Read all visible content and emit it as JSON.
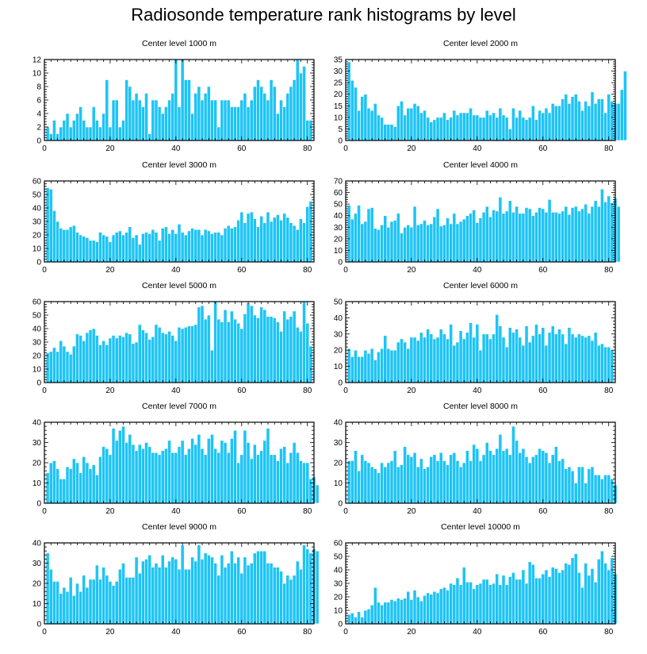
{
  "page": {
    "title": "Radiosonde temperature rank histograms by level"
  },
  "style": {
    "bar_color": "#1ec4f5",
    "bar_stroke": "#ffffff",
    "axis_color": "#000000"
  },
  "chart_data": [
    {
      "type": "bar",
      "title": "Center level 1000 m",
      "xlim": [
        0,
        82
      ],
      "ylim": [
        0,
        12
      ],
      "xticks": [
        0,
        20,
        40,
        60,
        80
      ],
      "yticks": [
        0,
        2,
        4,
        6,
        8,
        10,
        12
      ],
      "x_start": 1,
      "values": [
        2,
        1,
        3,
        1,
        2,
        3,
        4,
        2,
        3,
        4,
        5,
        3,
        2,
        2,
        5,
        3,
        2,
        4,
        9,
        2,
        6,
        6,
        2,
        3,
        9,
        8,
        6,
        7,
        6,
        5,
        7,
        1,
        6,
        6,
        5,
        4,
        5,
        6,
        7,
        12,
        5,
        12,
        9,
        9,
        4,
        7,
        8,
        6,
        7,
        8,
        6,
        6,
        2,
        6,
        6,
        6,
        5,
        5,
        5,
        6,
        7,
        5,
        6,
        8,
        9,
        8,
        7,
        6,
        9,
        8,
        4,
        6,
        5,
        7,
        8,
        9,
        12,
        10,
        11,
        3,
        3
      ]
    },
    {
      "type": "bar",
      "title": "Center level 2000 m",
      "xlim": [
        0,
        82
      ],
      "ylim": [
        0,
        35
      ],
      "xticks": [
        0,
        20,
        40,
        60,
        80
      ],
      "yticks": [
        0,
        5,
        10,
        15,
        20,
        25,
        30,
        35
      ],
      "x_start": 1,
      "values": [
        34,
        26,
        23,
        13,
        19,
        20,
        14,
        13,
        16,
        11,
        10,
        7,
        7,
        7,
        6,
        15,
        17,
        11,
        14,
        14,
        16,
        15,
        12,
        13,
        10,
        8,
        9,
        10,
        10,
        12,
        9,
        10,
        13,
        11,
        12,
        12,
        12,
        14,
        11,
        11,
        10,
        10,
        13,
        11,
        12,
        10,
        14,
        11,
        10,
        5,
        14,
        10,
        13,
        10,
        9,
        10,
        15,
        9,
        13,
        12,
        14,
        12,
        16,
        15,
        15,
        18,
        20,
        16,
        19,
        20,
        17,
        13,
        17,
        15,
        21,
        16,
        18,
        18,
        12,
        20,
        17,
        16,
        16,
        22,
        30
      ]
    },
    {
      "type": "bar",
      "title": "Center level 3000 m",
      "xlim": [
        0,
        82
      ],
      "ylim": [
        0,
        60
      ],
      "xticks": [
        0,
        20,
        40,
        60,
        80
      ],
      "yticks": [
        0,
        10,
        20,
        30,
        40,
        50,
        60
      ],
      "x_start": 1,
      "values": [
        55,
        54,
        38,
        30,
        25,
        24,
        24,
        26,
        27,
        22,
        20,
        19,
        18,
        16,
        16,
        15,
        22,
        20,
        19,
        15,
        20,
        22,
        23,
        20,
        22,
        26,
        18,
        20,
        13,
        21,
        22,
        21,
        24,
        22,
        16,
        25,
        26,
        21,
        24,
        21,
        28,
        22,
        20,
        23,
        25,
        24,
        24,
        20,
        24,
        23,
        21,
        22,
        22,
        20,
        25,
        27,
        25,
        26,
        31,
        37,
        29,
        36,
        37,
        32,
        26,
        34,
        29,
        37,
        30,
        33,
        35,
        31,
        36,
        33,
        29,
        27,
        24,
        32,
        29,
        41,
        45
      ]
    },
    {
      "type": "bar",
      "title": "Center level 4000 m",
      "xlim": [
        0,
        82
      ],
      "ylim": [
        0,
        70
      ],
      "xticks": [
        0,
        20,
        40,
        60,
        80
      ],
      "yticks": [
        0,
        10,
        20,
        30,
        40,
        50,
        60,
        70
      ],
      "x_start": 1,
      "values": [
        49,
        37,
        42,
        49,
        33,
        35,
        46,
        47,
        29,
        28,
        32,
        40,
        30,
        35,
        36,
        42,
        25,
        30,
        32,
        30,
        48,
        32,
        33,
        36,
        32,
        33,
        39,
        46,
        31,
        32,
        38,
        33,
        42,
        33,
        35,
        37,
        40,
        42,
        45,
        34,
        38,
        43,
        48,
        39,
        45,
        44,
        56,
        42,
        44,
        53,
        43,
        48,
        42,
        42,
        47,
        46,
        40,
        43,
        47,
        46,
        43,
        54,
        43,
        43,
        42,
        44,
        48,
        41,
        47,
        48,
        44,
        46,
        50,
        42,
        48,
        53,
        48,
        63,
        52,
        57,
        51,
        55,
        48
      ]
    },
    {
      "type": "bar",
      "title": "Center level 5000 m",
      "xlim": [
        0,
        82
      ],
      "ylim": [
        0,
        60
      ],
      "xticks": [
        0,
        20,
        40,
        60,
        80
      ],
      "yticks": [
        0,
        10,
        20,
        30,
        40,
        50,
        60
      ],
      "x_start": 1,
      "values": [
        22,
        23,
        26,
        23,
        31,
        27,
        23,
        21,
        27,
        36,
        35,
        31,
        37,
        39,
        40,
        35,
        28,
        31,
        28,
        33,
        35,
        33,
        35,
        34,
        37,
        36,
        29,
        30,
        43,
        39,
        37,
        32,
        34,
        43,
        41,
        37,
        36,
        38,
        35,
        31,
        41,
        40,
        41,
        42,
        42,
        43,
        56,
        57,
        47,
        50,
        24,
        60,
        47,
        45,
        54,
        45,
        53,
        47,
        44,
        40,
        51,
        59,
        57,
        50,
        48,
        56,
        54,
        49,
        49,
        48,
        45,
        38,
        53,
        47,
        49,
        53,
        41,
        38,
        60,
        44,
        27
      ]
    },
    {
      "type": "bar",
      "title": "Center level 6000 m",
      "xlim": [
        0,
        82
      ],
      "ylim": [
        0,
        50
      ],
      "xticks": [
        0,
        20,
        40,
        60,
        80
      ],
      "yticks": [
        0,
        10,
        20,
        30,
        40,
        50
      ],
      "x_start": 1,
      "values": [
        21,
        16,
        20,
        16,
        16,
        20,
        18,
        21,
        14,
        19,
        21,
        29,
        21,
        20,
        20,
        25,
        27,
        25,
        21,
        28,
        28,
        26,
        31,
        28,
        33,
        30,
        27,
        28,
        33,
        30,
        27,
        36,
        23,
        25,
        32,
        27,
        31,
        37,
        28,
        36,
        20,
        30,
        30,
        27,
        30,
        42,
        35,
        28,
        22,
        34,
        31,
        33,
        28,
        23,
        35,
        25,
        29,
        36,
        30,
        34,
        23,
        31,
        35,
        30,
        33,
        30,
        24,
        34,
        30,
        28,
        30,
        29,
        28,
        29,
        26,
        31,
        23,
        24,
        22,
        22,
        20
      ]
    },
    {
      "type": "bar",
      "title": "Center level 7000 m",
      "xlim": [
        0,
        82
      ],
      "ylim": [
        0,
        40
      ],
      "xticks": [
        0,
        20,
        40,
        60,
        80
      ],
      "yticks": [
        0,
        10,
        20,
        30,
        40
      ],
      "x_start": 1,
      "values": [
        15,
        20,
        21,
        17,
        12,
        12,
        18,
        17,
        22,
        20,
        15,
        23,
        20,
        17,
        19,
        14,
        23,
        28,
        27,
        24,
        37,
        31,
        36,
        38,
        30,
        34,
        29,
        26,
        29,
        27,
        30,
        28,
        25,
        25,
        24,
        26,
        27,
        31,
        25,
        25,
        28,
        31,
        24,
        27,
        32,
        29,
        34,
        27,
        24,
        32,
        34,
        27,
        25,
        31,
        30,
        25,
        32,
        36,
        20,
        24,
        36,
        30,
        22,
        29,
        24,
        26,
        31,
        37,
        24,
        24,
        21,
        27,
        28,
        20,
        25,
        30,
        25,
        21,
        20,
        20,
        12,
        13,
        9
      ]
    },
    {
      "type": "bar",
      "title": "Center level 8000 m",
      "xlim": [
        0,
        82
      ],
      "ylim": [
        0,
        40
      ],
      "xticks": [
        0,
        20,
        40,
        60,
        80
      ],
      "yticks": [
        0,
        10,
        20,
        30,
        40
      ],
      "x_start": 1,
      "values": [
        21,
        21,
        26,
        16,
        24,
        21,
        20,
        18,
        17,
        15,
        20,
        18,
        20,
        21,
        26,
        18,
        19,
        28,
        24,
        23,
        25,
        18,
        22,
        17,
        18,
        23,
        24,
        21,
        25,
        21,
        19,
        24,
        25,
        21,
        18,
        20,
        26,
        21,
        29,
        27,
        21,
        24,
        30,
        26,
        24,
        27,
        34,
        26,
        27,
        24,
        38,
        31,
        25,
        27,
        23,
        20,
        23,
        24,
        27,
        26,
        25,
        20,
        24,
        28,
        21,
        22,
        17,
        18,
        16,
        10,
        18,
        18,
        10,
        17,
        18,
        14,
        14,
        12,
        14,
        14,
        12,
        9
      ]
    },
    {
      "type": "bar",
      "title": "Center level 9000 m",
      "xlim": [
        0,
        82
      ],
      "ylim": [
        0,
        40
      ],
      "xticks": [
        0,
        20,
        40,
        60,
        80
      ],
      "yticks": [
        0,
        10,
        20,
        30,
        40
      ],
      "x_start": 1,
      "values": [
        35,
        27,
        21,
        21,
        15,
        18,
        16,
        23,
        14,
        20,
        16,
        24,
        18,
        22,
        22,
        29,
        22,
        28,
        24,
        21,
        19,
        21,
        27,
        30,
        23,
        23,
        23,
        33,
        25,
        31,
        32,
        34,
        28,
        30,
        28,
        34,
        28,
        31,
        33,
        32,
        27,
        39,
        27,
        27,
        33,
        31,
        39,
        32,
        35,
        34,
        33,
        30,
        24,
        34,
        28,
        30,
        36,
        30,
        33,
        25,
        33,
        29,
        30,
        35,
        36,
        36,
        36,
        30,
        30,
        28,
        28,
        26,
        20,
        24,
        22,
        24,
        31,
        27,
        39,
        37,
        35,
        37,
        36
      ]
    },
    {
      "type": "bar",
      "title": "Center level 10000 m",
      "xlim": [
        0,
        82
      ],
      "ylim": [
        0,
        60
      ],
      "xticks": [
        0,
        20,
        40,
        60,
        80
      ],
      "yticks": [
        0,
        10,
        20,
        30,
        40,
        50,
        60
      ],
      "x_start": 1,
      "values": [
        7,
        8,
        5,
        9,
        5,
        10,
        11,
        14,
        27,
        16,
        14,
        16,
        16,
        18,
        17,
        19,
        18,
        19,
        24,
        18,
        25,
        20,
        17,
        21,
        23,
        22,
        24,
        23,
        26,
        27,
        25,
        30,
        29,
        34,
        29,
        42,
        31,
        31,
        26,
        29,
        30,
        33,
        33,
        29,
        30,
        37,
        29,
        36,
        29,
        35,
        38,
        33,
        33,
        40,
        30,
        46,
        44,
        34,
        34,
        37,
        40,
        35,
        42,
        41,
        38,
        40,
        45,
        44,
        49,
        52,
        38,
        27,
        45,
        36,
        41,
        31,
        48,
        54,
        45,
        40,
        49,
        37
      ]
    }
  ]
}
